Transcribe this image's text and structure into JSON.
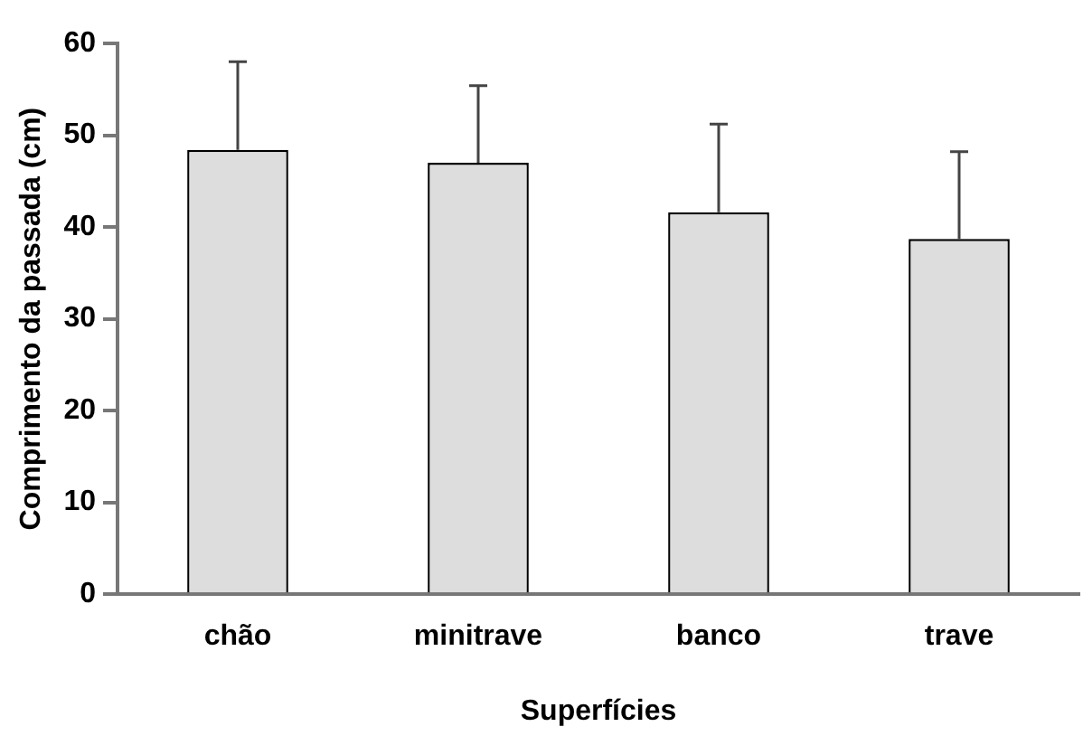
{
  "chart_data": {
    "type": "bar",
    "xlabel": "Superfícies",
    "ylabel": "Comprimento da passada (cm)",
    "categories": [
      "chão",
      "minitrave",
      "banco",
      "trave"
    ],
    "values": [
      48.4,
      47.0,
      41.6,
      38.7
    ],
    "errors": [
      [
        48.4,
        58.0
      ],
      [
        47.0,
        55.4
      ],
      [
        41.6,
        51.2
      ],
      [
        38.7,
        48.2
      ]
    ],
    "color": "#dddddd",
    "ylim": [
      0,
      60
    ],
    "yticks": [
      0,
      10,
      20,
      30,
      40,
      50,
      60
    ],
    "grid": false,
    "legend": false
  }
}
